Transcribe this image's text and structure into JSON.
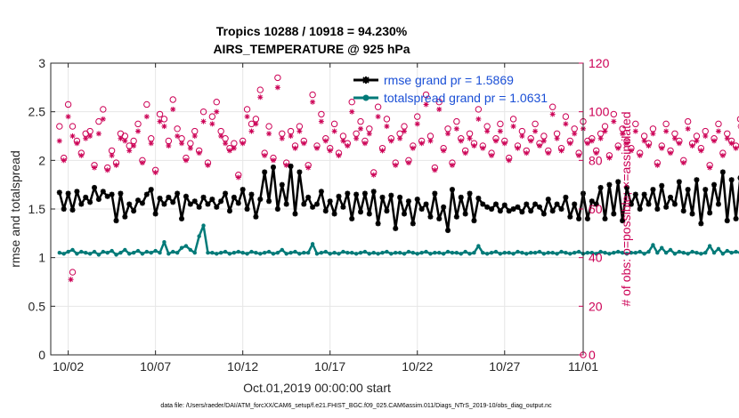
{
  "chart_data": {
    "type": "line",
    "title_line1": "Tropics 10288 / 10918 = 94.230%",
    "title_line2": "AIRS_TEMPERATURE @ 925 hPa",
    "xlabel": "Oct.01,2019 00:00:00 start",
    "ylabel_left": "rmse and totalspread",
    "ylabel_right": "# of obs: o=possible; ×=assimilated",
    "footnote": "data file: /Users/raeder/DAI/ATM_forcXX/CAM6_setup/f.e21.FHIST_BGC.f09_025.CAM6assim.011/Diags_NTrS_2019-10/obs_diag_output.nc",
    "xlim": [
      0.5,
      31.0
    ],
    "ylim_left": [
      0,
      3
    ],
    "ylim_right": [
      0,
      120
    ],
    "x_ticks": [
      1.5,
      6.5,
      11.5,
      16.5,
      21.5,
      26.5,
      31.0
    ],
    "x_tick_labels": [
      "10/02",
      "10/07",
      "10/12",
      "10/17",
      "10/22",
      "10/27",
      "11/01"
    ],
    "y_ticks_left": [
      "0",
      "0.5",
      "1",
      "1.5",
      "2",
      "2.5",
      "3"
    ],
    "y_ticks_right": [
      "0",
      "20",
      "40",
      "60",
      "80",
      "100",
      "120"
    ],
    "grid": true,
    "legend_position": "top-right",
    "x_step_days": 0.25,
    "rmse": {
      "name": "rmse grand pr = 1.5869",
      "color": "#000000",
      "values": [
        1.67,
        1.5,
        1.66,
        1.49,
        1.68,
        1.55,
        1.62,
        1.57,
        1.72,
        1.6,
        1.68,
        1.63,
        1.65,
        1.38,
        1.66,
        1.42,
        1.55,
        1.48,
        1.59,
        1.56,
        1.65,
        1.7,
        1.45,
        1.61,
        1.55,
        1.62,
        1.57,
        1.66,
        1.4,
        1.63,
        1.55,
        1.58,
        1.52,
        1.62,
        1.55,
        1.6,
        1.52,
        1.58,
        1.66,
        1.48,
        1.62,
        1.56,
        1.7,
        1.5,
        1.65,
        1.42,
        1.6,
        1.88,
        1.58,
        1.93,
        1.5,
        1.75,
        1.55,
        1.94,
        1.45,
        1.88,
        1.55,
        1.62,
        1.52,
        1.55,
        1.68,
        1.48,
        1.58,
        1.45,
        1.63,
        1.52,
        1.66,
        1.4,
        1.65,
        1.47,
        1.66,
        1.45,
        1.68,
        1.35,
        1.62,
        1.48,
        1.64,
        1.3,
        1.62,
        1.45,
        1.58,
        1.35,
        1.6,
        1.5,
        1.55,
        1.42,
        1.66,
        1.4,
        1.52,
        1.28,
        1.7,
        1.42,
        1.62,
        1.45,
        1.66,
        1.38,
        1.61,
        1.55,
        1.52,
        1.5,
        1.55,
        1.48,
        1.54,
        1.48,
        1.5,
        1.52,
        1.47,
        1.55,
        1.48,
        1.55,
        1.52,
        1.45,
        1.6,
        1.48,
        1.55,
        1.5,
        1.62,
        1.42,
        1.55,
        1.4,
        1.66,
        1.4,
        1.58,
        1.55,
        1.72,
        1.4,
        1.75,
        1.45,
        1.78,
        1.38,
        1.72,
        1.55,
        1.65,
        1.5,
        1.65,
        1.55,
        1.7,
        1.5,
        1.74,
        1.52,
        1.62,
        1.55,
        1.78,
        1.48,
        1.7,
        1.45,
        1.8,
        1.35,
        1.7,
        1.46,
        1.75,
        1.55,
        1.88,
        1.38,
        1.8,
        1.4,
        1.82,
        1.48,
        1.7,
        1.6,
        1.88,
        1.3,
        1.8,
        1.38,
        1.84,
        1.3,
        1.86,
        1.32,
        1.8,
        1.42,
        1.7,
        1.4,
        1.75,
        1.6,
        1.85,
        1.41,
        1.8,
        1.43,
        1.75,
        1.45
      ]
    },
    "totalspread": {
      "name": "totalspread grand pr = 1.0631",
      "color": "#007a78",
      "values": [
        1.05,
        1.04,
        1.06,
        1.08,
        1.04,
        1.06,
        1.05,
        1.04,
        1.06,
        1.03,
        1.06,
        1.05,
        1.07,
        1.03,
        1.05,
        1.08,
        1.04,
        1.05,
        1.07,
        1.04,
        1.06,
        1.05,
        1.07,
        1.05,
        1.16,
        1.04,
        1.06,
        1.05,
        1.1,
        1.12,
        1.08,
        1.05,
        1.22,
        1.33,
        1.05,
        1.05,
        1.04,
        1.05,
        1.06,
        1.04,
        1.05,
        1.06,
        1.05,
        1.04,
        1.06,
        1.05,
        1.04,
        1.05,
        1.06,
        1.04,
        1.05,
        1.08,
        1.04,
        1.05,
        1.06,
        1.04,
        1.05,
        1.05,
        1.14,
        1.04,
        1.05,
        1.06,
        1.04,
        1.05,
        1.04,
        1.06,
        1.05,
        1.05,
        1.04,
        1.05,
        1.06,
        1.04,
        1.05,
        1.04,
        1.05,
        1.06,
        1.04,
        1.05,
        1.05,
        1.04,
        1.06,
        1.05,
        1.04,
        1.05,
        1.06,
        1.04,
        1.05,
        1.05,
        1.04,
        1.06,
        1.05,
        1.05,
        1.04,
        1.06,
        1.04,
        1.05,
        1.12,
        1.05,
        1.04,
        1.05,
        1.06,
        1.04,
        1.05,
        1.05,
        1.04,
        1.06,
        1.05,
        1.04,
        1.05,
        1.05,
        1.06,
        1.04,
        1.05,
        1.05,
        1.04,
        1.06,
        1.05,
        1.04,
        1.05,
        1.06,
        1.04,
        1.05,
        1.05,
        1.04,
        1.06,
        1.05,
        1.04,
        1.05,
        1.06,
        1.05,
        1.04,
        1.05,
        1.05,
        1.06,
        1.04,
        1.06,
        1.13,
        1.05,
        1.1,
        1.05,
        1.08,
        1.04,
        1.06,
        1.05,
        1.04,
        1.06,
        1.05,
        1.04,
        1.05,
        1.12,
        1.05,
        1.09,
        1.04,
        1.07,
        1.05,
        1.06,
        1.05,
        1.04,
        1.06,
        1.05,
        1.06,
        1.28,
        1.05,
        1.04,
        1.08,
        1.06,
        1.04,
        1.09,
        1.05,
        1.1,
        1.04,
        1.07,
        1.05,
        1.06,
        1.05,
        1.14,
        1.05,
        1.06,
        1.08,
        1.05,
        1.07,
        1.08
      ]
    },
    "obs_possible": {
      "color": "#cc0055",
      "values": [
        94,
        81,
        103,
        94,
        88,
        83,
        91,
        92,
        78,
        96,
        101,
        77,
        84,
        79,
        91,
        90,
        86,
        88,
        95,
        80,
        103,
        89,
        76,
        99,
        97,
        88,
        105,
        93,
        89,
        81,
        87,
        92,
        84,
        100,
        79,
        98,
        104,
        92,
        89,
        85,
        87,
        74,
        88,
        101,
        95,
        97,
        109,
        83,
        94,
        81,
        114,
        91,
        79,
        92,
        86,
        94,
        88,
        78,
        107,
        86,
        99,
        89,
        85,
        95,
        83,
        90,
        87,
        104,
        91,
        96,
        88,
        93,
        75,
        102,
        85,
        97,
        89,
        79,
        91,
        94,
        80,
        86,
        98,
        88,
        107,
        90,
        77,
        104,
        85,
        93,
        79,
        96,
        89,
        84,
        91,
        87,
        101,
        86,
        94,
        83,
        89,
        95,
        88,
        81,
        97,
        86,
        92,
        84,
        89,
        95,
        87,
        90,
        84,
        102,
        91,
        85,
        98,
        88,
        93,
        83,
        96,
        88,
        89,
        84,
        91,
        94,
        82,
        99,
        86,
        93,
        88,
        85,
        95,
        83,
        90,
        87,
        93,
        79,
        86,
        95,
        84,
        91,
        88,
        80,
        96,
        87,
        90,
        85,
        92,
        78,
        89,
        95,
        83,
        91,
        88,
        86,
        97,
        80,
        93,
        86,
        116,
        90,
        85,
        79,
        93,
        87,
        91,
        86,
        89,
        95,
        90,
        83
      ],
      "last": 0
    },
    "obs_assimilated": {
      "color": "#cc0055",
      "values": [
        88,
        80,
        98,
        90,
        87,
        82,
        89,
        90,
        77,
        91,
        97,
        76,
        82,
        78,
        89,
        88,
        84,
        86,
        92,
        79,
        98,
        87,
        75,
        96,
        94,
        86,
        101,
        90,
        87,
        80,
        85,
        90,
        83,
        96,
        78,
        95,
        100,
        90,
        87,
        84,
        85,
        73,
        87,
        98,
        92,
        95,
        106,
        82,
        91,
        80,
        110,
        89,
        78,
        90,
        85,
        92,
        87,
        77,
        104,
        85,
        96,
        88,
        84,
        92,
        82,
        88,
        86,
        100,
        89,
        93,
        87,
        91,
        74,
        98,
        84,
        94,
        88,
        78,
        89,
        92,
        79,
        85,
        95,
        87,
        103,
        88,
        76,
        101,
        84,
        91,
        78,
        93,
        88,
        83,
        89,
        86,
        97,
        85,
        92,
        82,
        88,
        92,
        87,
        80,
        94,
        85,
        90,
        83,
        88,
        92,
        86,
        88,
        83,
        99,
        89,
        84,
        95,
        87,
        91,
        82,
        93,
        87,
        88,
        83,
        89,
        92,
        81,
        96,
        85,
        91,
        87,
        84,
        92,
        82,
        88,
        86,
        91,
        78,
        85,
        92,
        83,
        89,
        87,
        79,
        93,
        86,
        88,
        84,
        90,
        77,
        88,
        92,
        82,
        89,
        87,
        85,
        94,
        79,
        91,
        85,
        113,
        88,
        84,
        78,
        91,
        86,
        89,
        85,
        88,
        92,
        88,
        82
      ]
    },
    "outliers": {
      "possible_low": [
        [
          1.75,
          34
        ]
      ],
      "assimilated_low": [
        [
          1.65,
          31
        ]
      ]
    }
  }
}
